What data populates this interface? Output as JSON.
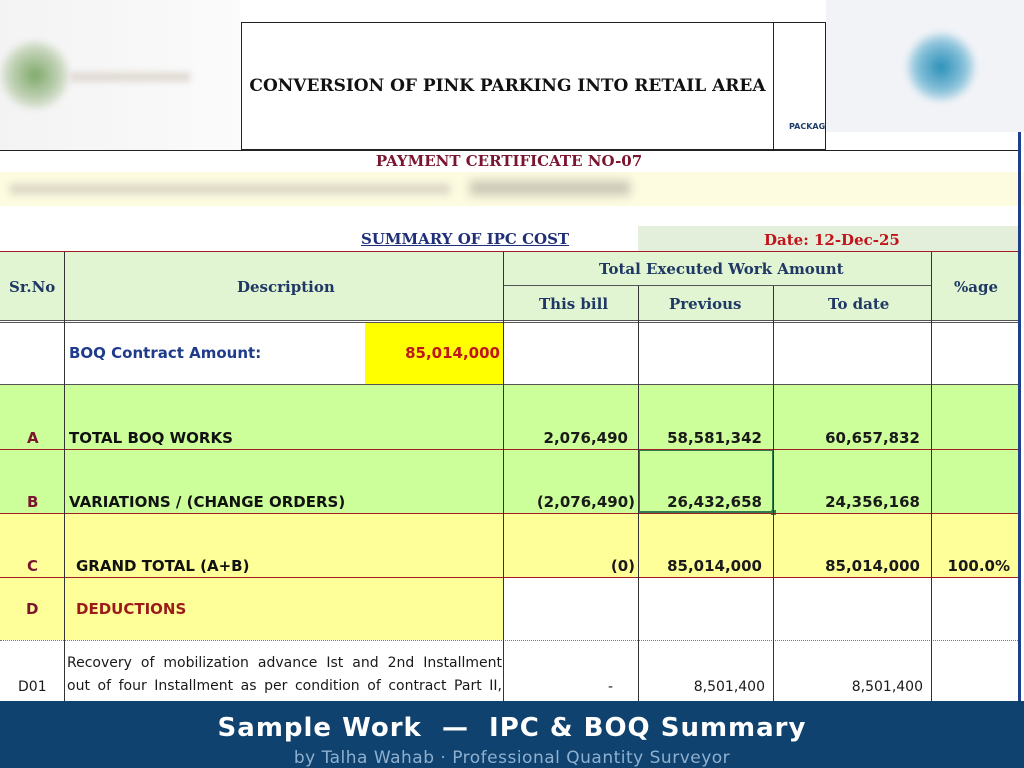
{
  "header": {
    "title": "CONVERSION OF PINK PARKING INTO RETAIL AREA",
    "package_label": "PACKAG",
    "payment_certificate": "PAYMENT CERTIFICATE NO-07"
  },
  "summary": {
    "title": "SUMMARY OF IPC COST",
    "date": "Date: 12-Dec-25"
  },
  "table": {
    "headers": {
      "sr_no": "Sr.No",
      "description": "Description",
      "group": "Total Executed Work Amount",
      "this_bill": "This bill",
      "previous": "Previous",
      "to_date": "To date",
      "percentage": "%age"
    },
    "contract": {
      "label": "BOQ Contract Amount:",
      "value": "85,014,000"
    },
    "rows": [
      {
        "sr": "A",
        "description": "TOTAL BOQ WORKS",
        "this_bill": "2,076,490",
        "previous": "58,581,342",
        "to_date": "60,657,832",
        "pct": ""
      },
      {
        "sr": "B",
        "description": "VARIATIONS / (CHANGE ORDERS)",
        "this_bill": "(2,076,490)",
        "previous": "26,432,658",
        "to_date": "24,356,168",
        "pct": ""
      },
      {
        "sr": "C",
        "description": "GRAND TOTAL (A+B)",
        "this_bill": "(0)",
        "previous": "85,014,000",
        "to_date": "85,014,000",
        "pct": "100.0%"
      },
      {
        "sr": "D",
        "description": "DEDUCTIONS",
        "this_bill": "",
        "previous": "",
        "to_date": "",
        "pct": ""
      },
      {
        "sr": "D01",
        "description_line1": "Recovery of mobilization advance Ist and 2nd Installment",
        "description_line2": "out of four Installment as per condition of contract Part II,",
        "this_bill": "-",
        "previous": "8,501,400",
        "to_date": "8,501,400",
        "pct": ""
      }
    ]
  },
  "footer": {
    "title": "Sample Work  —  IPC & BOQ Summary",
    "subtitle": "by Talha Wahab · Professional Quantity Surveyor"
  },
  "colors": {
    "green_band": "#ccff99",
    "yellow_band": "#ffff99",
    "contract_highlight": "#ffff00",
    "footer_bg": "#0f426f",
    "date_red": "#c0151b"
  }
}
